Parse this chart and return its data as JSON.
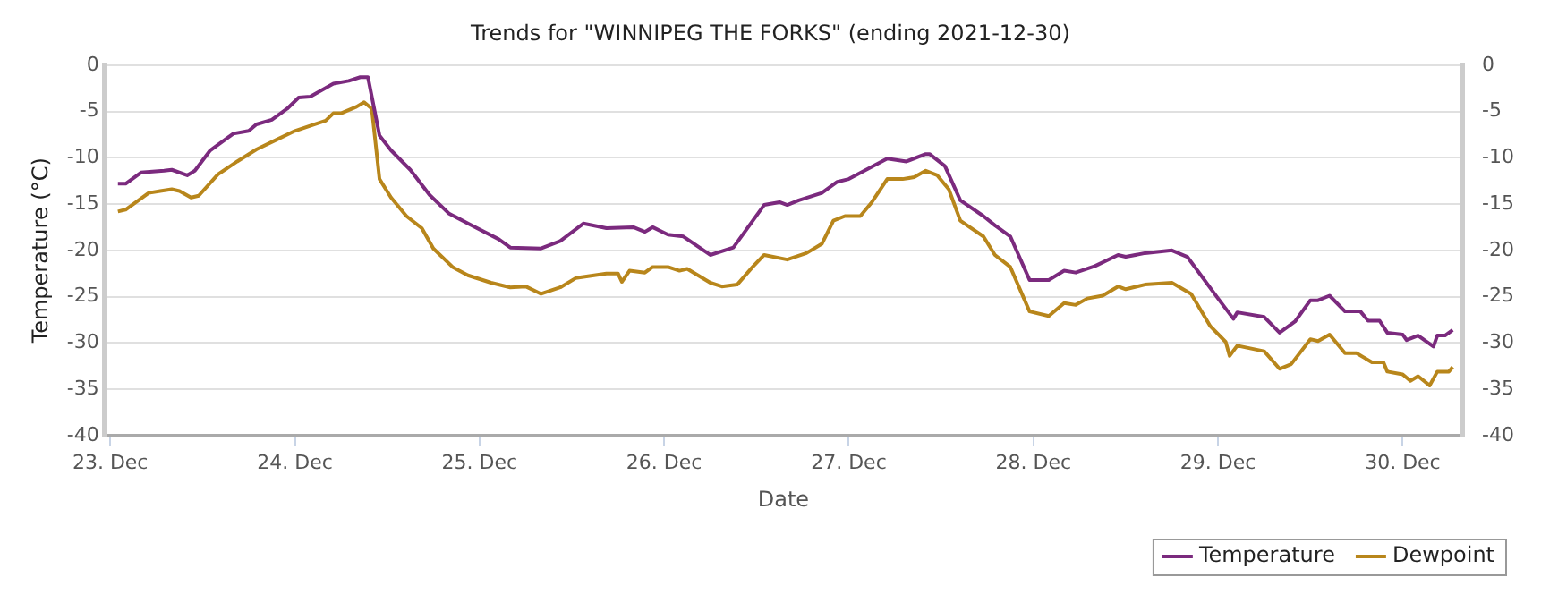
{
  "chart_data": {
    "type": "line",
    "title": "Trends for \"WINNIPEG THE FORKS\" (ending 2021-12-30)",
    "xlabel": "Date",
    "ylabel": "Temperature (°C)",
    "xlim": [
      "2021-12-22T23:15",
      "2021-12-30T07:45"
    ],
    "xticks": [
      {
        "value": "2021-12-23",
        "label": "23. Dec"
      },
      {
        "value": "2021-12-24",
        "label": "24. Dec"
      },
      {
        "value": "2021-12-25",
        "label": "25. Dec"
      },
      {
        "value": "2021-12-26",
        "label": "26. Dec"
      },
      {
        "value": "2021-12-27",
        "label": "27. Dec"
      },
      {
        "value": "2021-12-28",
        "label": "28. Dec"
      },
      {
        "value": "2021-12-29",
        "label": "29. Dec"
      },
      {
        "value": "2021-12-30",
        "label": "30. Dec"
      }
    ],
    "ylim": [
      -40,
      0
    ],
    "yticks": [
      -40,
      -35,
      -30,
      -25,
      -20,
      -15,
      -10,
      -5,
      0
    ],
    "y2lim": [
      -40,
      0
    ],
    "y2ticks": [
      -40,
      -35,
      -30,
      -25,
      -20,
      -15,
      -10,
      -5,
      0
    ],
    "grid": "y",
    "legend": "bottom right",
    "marker": "none",
    "line_style": "solid",
    "series": [
      {
        "name": "Temperature",
        "color": "#7b2a7e",
        "x": [
          "2021-12-23T01:00",
          "2021-12-23T02:00",
          "2021-12-23T04:00",
          "2021-12-23T07:00",
          "2021-12-23T08:00",
          "2021-12-23T10:00",
          "2021-12-23T11:00",
          "2021-12-23T13:00",
          "2021-12-23T16:00",
          "2021-12-23T18:00",
          "2021-12-23T19:00",
          "2021-12-23T21:00",
          "2021-12-23T23:00",
          "2021-12-24T00:30",
          "2021-12-24T02:00",
          "2021-12-24T05:00",
          "2021-12-24T07:00",
          "2021-12-24T08:30",
          "2021-12-24T09:30",
          "2021-12-24T11:00",
          "2021-12-24T12:30",
          "2021-12-24T15:00",
          "2021-12-24T17:30",
          "2021-12-24T20:00",
          "2021-12-24T22:30",
          "2021-12-25T02:30",
          "2021-12-25T04:00",
          "2021-12-25T08:00",
          "2021-12-25T10:30",
          "2021-12-25T13:30",
          "2021-12-25T16:30",
          "2021-12-25T20:00",
          "2021-12-25T21:30",
          "2021-12-25T22:30",
          "2021-12-26T00:30",
          "2021-12-26T02:30",
          "2021-12-26T06:00",
          "2021-12-26T09:00",
          "2021-12-26T13:00",
          "2021-12-26T15:00",
          "2021-12-26T16:00",
          "2021-12-26T17:30",
          "2021-12-26T20:30",
          "2021-12-26T22:30",
          "2021-12-27T00:00",
          "2021-12-27T05:00",
          "2021-12-27T07:30",
          "2021-12-27T10:00",
          "2021-12-27T10:30",
          "2021-12-27T12:30",
          "2021-12-27T14:30",
          "2021-12-27T17:30",
          "2021-12-27T19:00",
          "2021-12-27T21:00",
          "2021-12-27T23:30",
          "2021-12-28T02:00",
          "2021-12-28T04:00",
          "2021-12-28T05:30",
          "2021-12-28T08:00",
          "2021-12-28T11:00",
          "2021-12-28T12:00",
          "2021-12-28T14:30",
          "2021-12-28T18:00",
          "2021-12-28T20:00",
          "2021-12-29T00:00",
          "2021-12-29T02:00",
          "2021-12-29T02:30",
          "2021-12-29T06:00",
          "2021-12-29T08:00",
          "2021-12-29T10:00",
          "2021-12-29T12:00",
          "2021-12-29T13:00",
          "2021-12-29T14:30",
          "2021-12-29T16:30",
          "2021-12-29T18:30",
          "2021-12-29T19:30",
          "2021-12-29T21:00",
          "2021-12-29T22:00",
          "2021-12-30T00:00",
          "2021-12-30T00:30",
          "2021-12-30T02:00",
          "2021-12-30T04:00",
          "2021-12-30T04:30",
          "2021-12-30T05:30",
          "2021-12-30T06:30"
        ],
        "values": [
          -12.8,
          -12.8,
          -11.6,
          -11.4,
          -11.3,
          -11.9,
          -11.4,
          -9.2,
          -7.4,
          -7.1,
          -6.4,
          -5.9,
          -4.7,
          -3.5,
          -3.4,
          -2.0,
          -1.7,
          -1.3,
          -1.3,
          -7.6,
          -9.2,
          -11.3,
          -14.0,
          -16.0,
          -17.1,
          -18.8,
          -19.7,
          -19.8,
          -19.0,
          -17.1,
          -17.6,
          -17.5,
          -18.0,
          -17.5,
          -18.3,
          -18.5,
          -20.5,
          -19.7,
          -15.1,
          -14.8,
          -15.1,
          -14.6,
          -13.8,
          -12.6,
          -12.3,
          -10.1,
          -10.4,
          -9.6,
          -9.6,
          -10.9,
          -14.6,
          -16.3,
          -17.3,
          -18.5,
          -23.2,
          -23.2,
          -22.2,
          -22.4,
          -21.7,
          -20.5,
          -20.7,
          -20.3,
          -20.0,
          -20.7,
          -25.2,
          -27.4,
          -26.7,
          -27.2,
          -28.9,
          -27.7,
          -25.4,
          -25.4,
          -24.9,
          -26.6,
          -26.6,
          -27.6,
          -27.6,
          -28.9,
          -29.1,
          -29.7,
          -29.2,
          -30.4,
          -29.2,
          -29.2,
          -28.6
        ]
      },
      {
        "name": "Dewpoint",
        "color": "#b8861b",
        "x": [
          "2021-12-23T01:00",
          "2021-12-23T02:00",
          "2021-12-23T05:00",
          "2021-12-23T06:30",
          "2021-12-23T08:00",
          "2021-12-23T09:00",
          "2021-12-23T10:30",
          "2021-12-23T11:30",
          "2021-12-23T14:00",
          "2021-12-23T16:30",
          "2021-12-23T19:00",
          "2021-12-23T21:30",
          "2021-12-24T00:00",
          "2021-12-24T02:30",
          "2021-12-24T04:00",
          "2021-12-24T05:00",
          "2021-12-24T06:00",
          "2021-12-24T08:00",
          "2021-12-24T09:00",
          "2021-12-24T10:00",
          "2021-12-24T11:00",
          "2021-12-24T12:30",
          "2021-12-24T14:30",
          "2021-12-24T16:30",
          "2021-12-24T18:00",
          "2021-12-24T20:30",
          "2021-12-24T22:30",
          "2021-12-25T01:30",
          "2021-12-25T04:00",
          "2021-12-25T06:00",
          "2021-12-25T08:00",
          "2021-12-25T10:30",
          "2021-12-25T12:30",
          "2021-12-25T16:30",
          "2021-12-25T18:00",
          "2021-12-25T18:30",
          "2021-12-25T19:30",
          "2021-12-25T21:30",
          "2021-12-25T22:30",
          "2021-12-26T00:30",
          "2021-12-26T02:00",
          "2021-12-26T03:00",
          "2021-12-26T06:00",
          "2021-12-26T07:30",
          "2021-12-26T09:30",
          "2021-12-26T11:30",
          "2021-12-26T13:00",
          "2021-12-26T16:00",
          "2021-12-26T18:30",
          "2021-12-26T20:30",
          "2021-12-26T22:00",
          "2021-12-26T23:30",
          "2021-12-27T01:30",
          "2021-12-27T03:00",
          "2021-12-27T05:00",
          "2021-12-27T07:00",
          "2021-12-27T08:30",
          "2021-12-27T10:00",
          "2021-12-27T11:30",
          "2021-12-27T13:00",
          "2021-12-27T14:30",
          "2021-12-27T17:30",
          "2021-12-27T19:00",
          "2021-12-27T21:00",
          "2021-12-27T23:30",
          "2021-12-28T02:00",
          "2021-12-28T04:00",
          "2021-12-28T05:30",
          "2021-12-28T07:00",
          "2021-12-28T09:00",
          "2021-12-28T11:00",
          "2021-12-28T12:00",
          "2021-12-28T14:30",
          "2021-12-28T18:00",
          "2021-12-28T20:30",
          "2021-12-28T23:00",
          "2021-12-29T01:00",
          "2021-12-29T01:30",
          "2021-12-29T02:30",
          "2021-12-29T06:00",
          "2021-12-29T08:00",
          "2021-12-29T09:30",
          "2021-12-29T12:00",
          "2021-12-29T13:00",
          "2021-12-29T14:30",
          "2021-12-29T16:30",
          "2021-12-29T18:00",
          "2021-12-29T20:00",
          "2021-12-29T21:30",
          "2021-12-29T22:00",
          "2021-12-30T00:00",
          "2021-12-30T01:00",
          "2021-12-30T02:00",
          "2021-12-30T03:30",
          "2021-12-30T04:30",
          "2021-12-30T06:00",
          "2021-12-30T06:30"
        ],
        "values": [
          -15.8,
          -15.6,
          -13.8,
          -13.6,
          -13.4,
          -13.6,
          -14.3,
          -14.1,
          -11.8,
          -10.4,
          -9.1,
          -8.1,
          -7.1,
          -6.4,
          -6.0,
          -5.2,
          -5.2,
          -4.5,
          -4.0,
          -4.7,
          -12.3,
          -14.3,
          -16.3,
          -17.6,
          -19.8,
          -21.8,
          -22.7,
          -23.5,
          -24.0,
          -23.9,
          -24.7,
          -24.0,
          -23.0,
          -22.5,
          -22.5,
          -23.4,
          -22.2,
          -22.4,
          -21.8,
          -21.8,
          -22.2,
          -22.0,
          -23.5,
          -23.9,
          -23.7,
          -21.8,
          -20.5,
          -21.0,
          -20.3,
          -19.3,
          -16.8,
          -16.3,
          -16.3,
          -14.8,
          -12.3,
          -12.3,
          -12.1,
          -11.4,
          -11.9,
          -13.4,
          -16.8,
          -18.5,
          -20.5,
          -21.8,
          -26.6,
          -27.1,
          -25.7,
          -25.9,
          -25.2,
          -24.9,
          -23.9,
          -24.2,
          -23.7,
          -23.5,
          -24.7,
          -28.2,
          -29.9,
          -31.4,
          -30.3,
          -30.9,
          -32.8,
          -32.3,
          -29.6,
          -29.8,
          -29.1,
          -31.1,
          -31.1,
          -32.1,
          -32.1,
          -33.1,
          -33.4,
          -34.1,
          -33.6,
          -34.6,
          -33.1,
          -33.1,
          -32.6
        ]
      }
    ]
  }
}
